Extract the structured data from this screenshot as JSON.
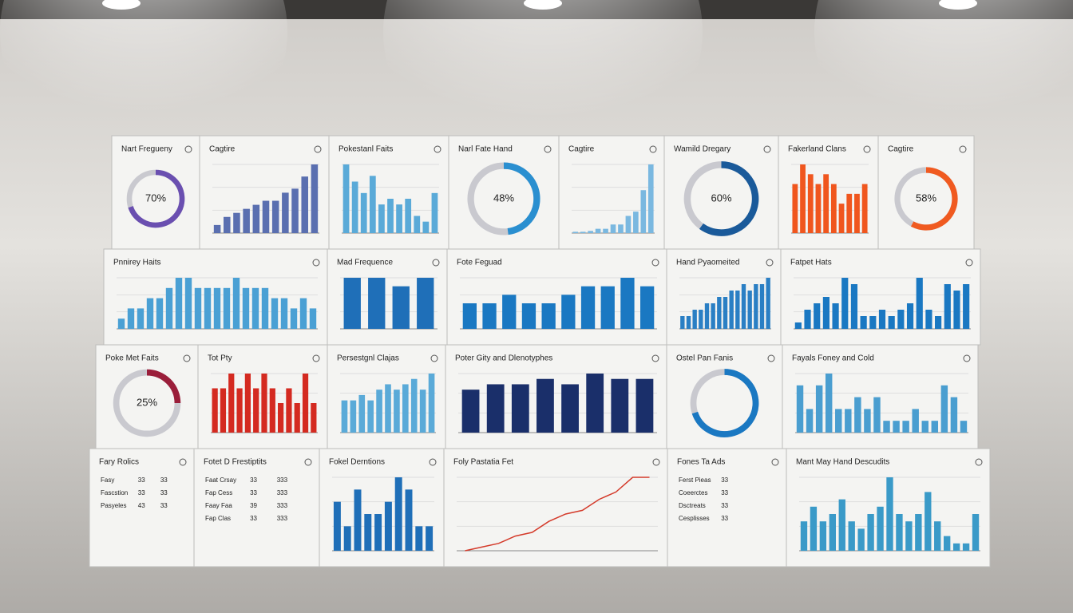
{
  "panels": [
    {
      "title": "Nart Fregueny",
      "type": "donut",
      "value": 70,
      "value_label": "70%",
      "color": "#6a4fb0"
    },
    {
      "title": "Cagtire",
      "type": "bar",
      "values": [
        2,
        4,
        5,
        6,
        7,
        8,
        8,
        10,
        11,
        14,
        17
      ],
      "color": "#5a6fb0"
    },
    {
      "title": "Pokestanl Faits",
      "type": "bar",
      "values": [
        12,
        9,
        7,
        10,
        5,
        6,
        5,
        6,
        3,
        2,
        7
      ],
      "color": "#5aaad8"
    },
    {
      "title": "Narl Fate Hand",
      "type": "donut",
      "value": 48,
      "value_label": "48%",
      "color": "#2a8fd0"
    },
    {
      "title": "Cagtire",
      "type": "bar",
      "values": [
        0.3,
        0.3,
        0.5,
        1,
        1,
        2,
        2,
        4,
        5,
        10,
        16
      ],
      "color": "#7ab8e0"
    },
    {
      "title": "Wamild Dregary",
      "type": "donut",
      "value": 60,
      "value_label": "60%",
      "color": "#1a5a9a"
    },
    {
      "title": "Fakerland Clans",
      "type": "bar",
      "values": [
        5,
        7,
        6,
        5,
        6,
        5,
        3,
        4,
        4,
        5
      ],
      "color": "#f0561e"
    },
    {
      "title": "Cagtire",
      "type": "donut",
      "value": 58,
      "value_label": "58%",
      "color": "#f05a20"
    },
    {
      "title": "Pnnirey Haits",
      "type": "bar",
      "values": [
        1,
        2,
        2,
        3,
        3,
        4,
        5,
        5,
        4,
        4,
        4,
        4,
        5,
        4,
        4,
        4,
        3,
        3,
        2,
        3,
        2
      ],
      "color": "#4aa0d4"
    },
    {
      "title": "Mad Frequence",
      "type": "bar",
      "values": [
        6,
        6,
        5,
        6
      ],
      "color": "#1f6fb8"
    },
    {
      "title": "Fote Feguad",
      "type": "bar",
      "values": [
        3,
        3,
        4,
        3,
        3,
        4,
        5,
        5,
        6,
        5
      ],
      "color": "#1a78c2"
    },
    {
      "title": "Hand Pyaomeited",
      "type": "bar",
      "values": [
        2,
        2,
        3,
        3,
        4,
        4,
        5,
        5,
        6,
        6,
        7,
        6,
        7,
        7,
        8
      ],
      "color": "#2a7fc4"
    },
    {
      "title": "Fatpet Hats",
      "type": "bar",
      "values": [
        1,
        3,
        4,
        5,
        4,
        8,
        7,
        2,
        2,
        3,
        2,
        3,
        4,
        8,
        3,
        2,
        7,
        6,
        7
      ],
      "color": "#1a78c2"
    },
    {
      "title": "Poke Met Faits",
      "type": "donut",
      "value": 25,
      "value_label": "25%",
      "color": "#9a1e3a"
    },
    {
      "title": "Tot Pty",
      "type": "bar",
      "values": [
        3,
        3,
        4,
        3,
        4,
        3,
        4,
        3,
        2,
        3,
        2,
        4,
        2
      ],
      "color": "#d42a20"
    },
    {
      "title": "Persestgnl Clajas",
      "type": "bar",
      "values": [
        6,
        6,
        7,
        6,
        8,
        9,
        8,
        9,
        10,
        8,
        11
      ],
      "color": "#5aaad8"
    },
    {
      "title": "Poter Gity and Dlenotyphes",
      "type": "bar",
      "values": [
        8,
        9,
        9,
        10,
        9,
        11,
        10,
        10
      ],
      "color": "#1a2f6a"
    },
    {
      "title": "Ostel Pan Fanis",
      "type": "donut",
      "value": 70,
      "color": "#1a78c2"
    },
    {
      "title": "Fayals Foney and Cold",
      "type": "bar",
      "values": [
        4,
        2,
        4,
        5,
        2,
        2,
        3,
        2,
        3,
        1,
        1,
        1,
        2,
        1,
        1,
        4,
        3,
        1
      ],
      "color": "#4a9ed0"
    },
    {
      "title": "Fary Rolics",
      "type": "table",
      "rows": [
        [
          "Fasy",
          "33",
          "33"
        ],
        [
          "Fascstion",
          "33",
          "33"
        ],
        [
          "Pasyeles",
          "43",
          "33"
        ]
      ]
    },
    {
      "title": "Fotet D Frestiptits",
      "type": "table",
      "rows": [
        [
          "Faat Crsay",
          "33",
          "333"
        ],
        [
          "Fap Cess",
          "33",
          "333"
        ],
        [
          "Faay Faa",
          "39",
          "333"
        ],
        [
          "Fap Clas",
          "33",
          "333"
        ]
      ]
    },
    {
      "title": "Fokel Derntions",
      "type": "bar",
      "values": [
        4,
        2,
        5,
        3,
        3,
        4,
        6,
        5,
        2,
        2
      ],
      "color": "#1f6fb8"
    },
    {
      "title": "Foly Pastatia Fet",
      "type": "line",
      "values": [
        0,
        0.5,
        1,
        2,
        2.5,
        4,
        5,
        5.5,
        7,
        8,
        10,
        10
      ],
      "color": "#d43a2a"
    },
    {
      "title": "Fones Ta Ads",
      "type": "table",
      "rows": [
        [
          "Ferst Pieas",
          "33"
        ],
        [
          "Coeerctes",
          "33"
        ],
        [
          "Dsctreats",
          "33"
        ],
        [
          "Cesplisses",
          "33"
        ]
      ]
    },
    {
      "title": "Mant May Hand Descudits",
      "type": "bar",
      "values": [
        4,
        6,
        4,
        5,
        7,
        4,
        3,
        5,
        6,
        10,
        5,
        4,
        5,
        8,
        4,
        2,
        1,
        1,
        5
      ],
      "color": "#3a9ac8"
    }
  ]
}
